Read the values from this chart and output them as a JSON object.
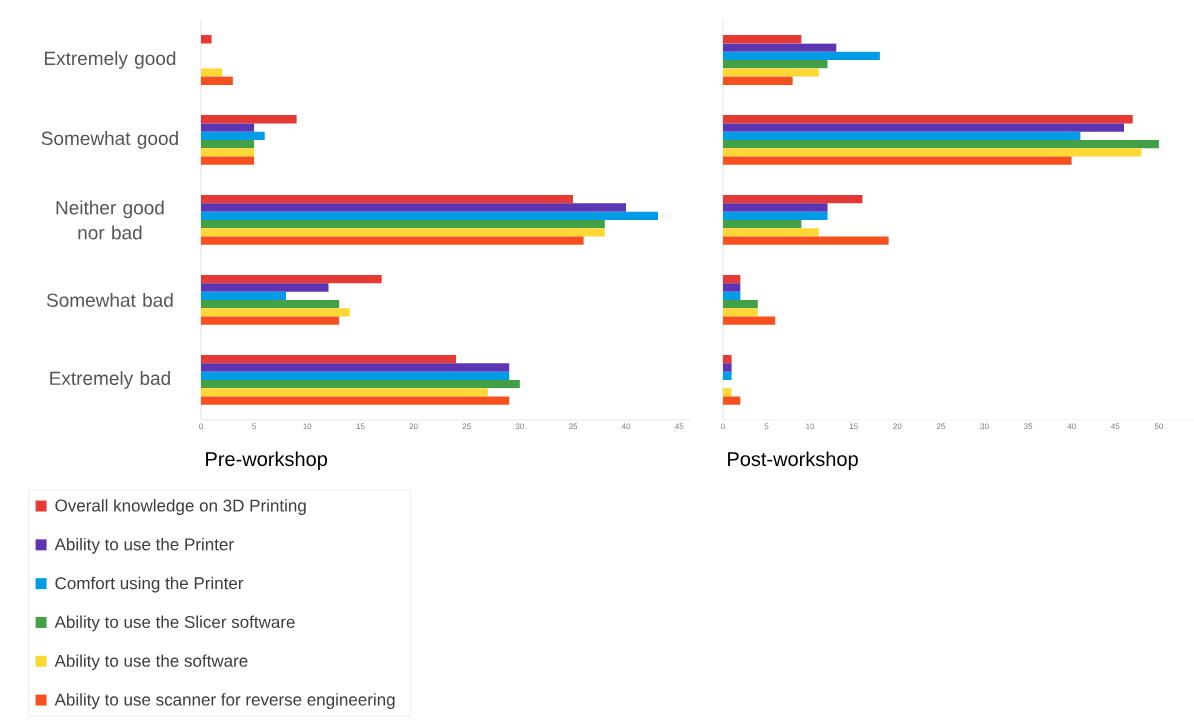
{
  "chart_data": [
    {
      "type": "bar",
      "orientation": "horizontal",
      "xlabel": "Pre-workshop",
      "categories": [
        "Extremely good",
        "Somewhat good",
        "Neither good nor bad",
        "Somewhat bad",
        "Extremely bad"
      ],
      "series": [
        {
          "name": "Overall knowledge on 3D Printing",
          "color": "#e53935",
          "values": [
            1,
            9,
            35,
            17,
            24
          ]
        },
        {
          "name": "Ability to use the Printer",
          "color": "#5e35b1",
          "values": [
            0,
            5,
            40,
            12,
            29
          ]
        },
        {
          "name": "Comfort using the Printer",
          "color": "#039be5",
          "values": [
            0,
            6,
            43,
            8,
            29
          ]
        },
        {
          "name": "Ability to use the Slicer software",
          "color": "#43a047",
          "values": [
            0,
            5,
            38,
            13,
            30
          ]
        },
        {
          "name": "Ability to use the software",
          "color": "#fdd835",
          "values": [
            2,
            5,
            38,
            14,
            27
          ]
        },
        {
          "name": "Ability to use scanner for reverse engineering",
          "color": "#f4511e",
          "values": [
            3,
            5,
            36,
            13,
            29
          ]
        }
      ],
      "xlim": [
        0,
        46
      ],
      "xticks": [
        0,
        5,
        10,
        15,
        20,
        25,
        30,
        35,
        40,
        45
      ],
      "legend": "bottom"
    },
    {
      "type": "bar",
      "orientation": "horizontal",
      "xlabel": "Post-workshop",
      "categories": [
        null,
        null,
        null,
        null,
        null
      ],
      "series": [
        {
          "color": "#e53935",
          "values": [
            9,
            47,
            16,
            2,
            1
          ]
        },
        {
          "color": "#5e35b1",
          "values": [
            13,
            46,
            12,
            2,
            1
          ]
        },
        {
          "color": "#039be5",
          "values": [
            18,
            41,
            12,
            2,
            1
          ]
        },
        {
          "color": "#43a047",
          "values": [
            12,
            50,
            9,
            4,
            0
          ]
        },
        {
          "color": "#fdd835",
          "values": [
            11,
            48,
            11,
            4,
            1
          ]
        },
        {
          "color": "#f4511e",
          "values": [
            8,
            40,
            19,
            6,
            2
          ]
        }
      ],
      "xlim": [
        0,
        54
      ],
      "xticks": [
        0,
        5,
        10,
        15,
        20,
        25,
        30,
        35,
        40,
        45,
        50
      ],
      "tick_labels": "x"
    }
  ]
}
